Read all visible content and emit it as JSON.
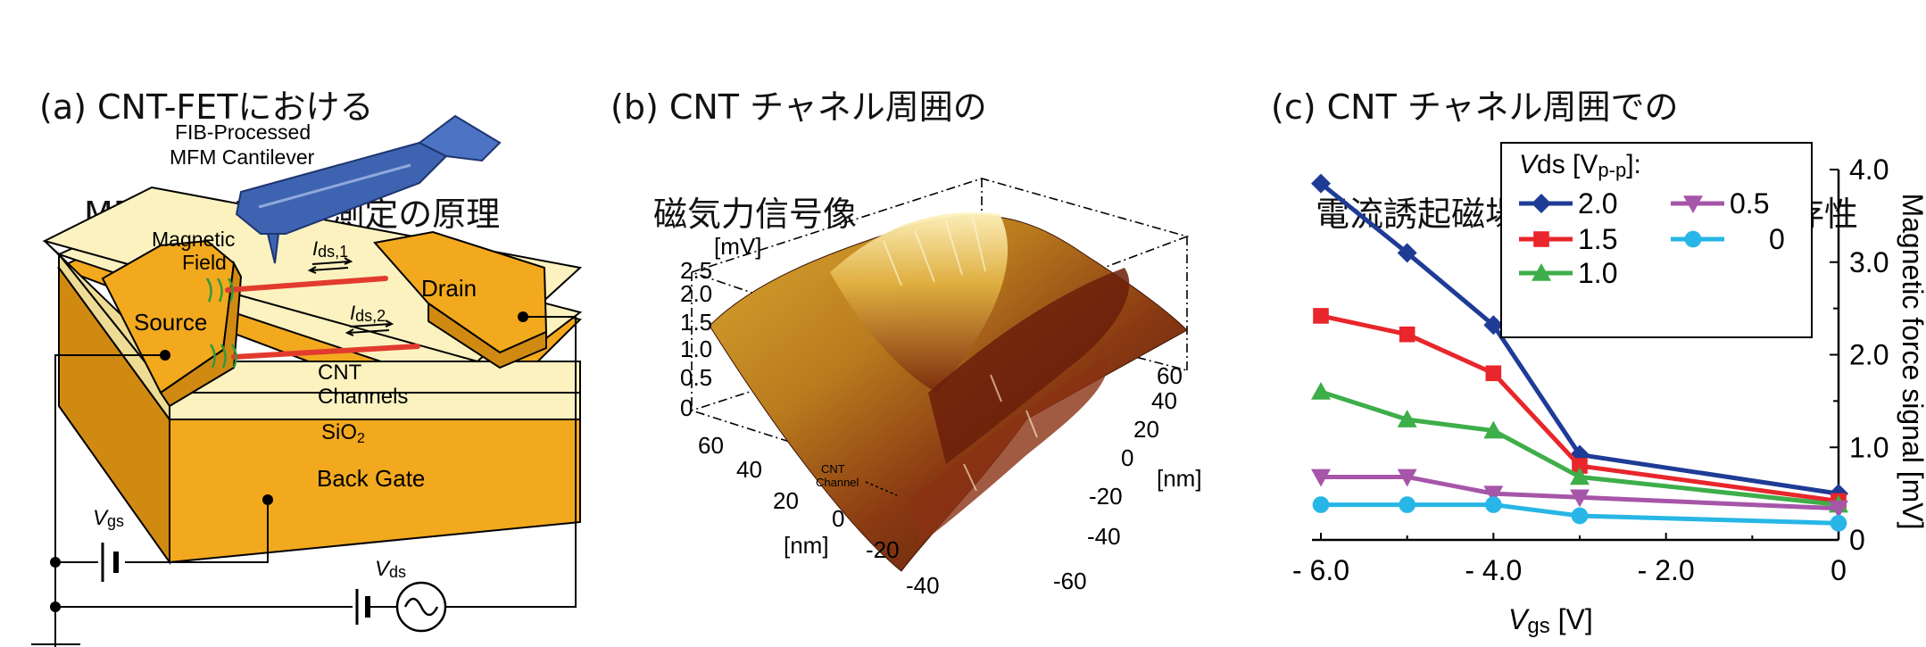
{
  "panel_a": {
    "title_line1": "(a) CNT-FETにおける",
    "title_line2": "MFMによる電流測定の原理",
    "cantilever_label_1": "FIB-Processed",
    "cantilever_label_2": "MFM Cantilever",
    "magnetic_label_1": "Magnetic",
    "magnetic_label_2": "Field",
    "ids1_main": "I",
    "ids1_sub": "ds,1",
    "ids2_main": "I",
    "ids2_sub": "ds,2",
    "source_label": "Source",
    "drain_label": "Drain",
    "cnt_label_1": "CNT",
    "cnt_label_2": "Channels",
    "sio2_label": "SiO",
    "sio2_sub": "2",
    "backgate_label": "Back Gate",
    "vgs_main": "V",
    "vgs_sub": "gs",
    "vds_main": "V",
    "vds_sub": "ds",
    "colors": {
      "gold": "#F2A91E",
      "gold_dark": "#D08A12",
      "cream": "#FBF2C0",
      "cream_side": "#EEDC95",
      "channel": "#E23B2E",
      "tip": "#3E63B0",
      "field": "#2F9A3C"
    }
  },
  "panel_b": {
    "title_line1": "(b) CNT チャネル周囲の",
    "title_line2": "磁気力信号像",
    "z_unit": "[mV]",
    "z_ticks": [
      "2.5",
      "2.0",
      "1.5",
      "1.0",
      "0.5",
      "0"
    ],
    "x_ticks": [
      "60",
      "40",
      "20",
      "0",
      "-20",
      "-40"
    ],
    "x_unit": "[nm]",
    "y_ticks": [
      "60",
      "40",
      "20",
      "0",
      "-20",
      "-40",
      "-60"
    ],
    "y_unit": "[nm]",
    "cnt_label_1": "CNT",
    "cnt_label_2": "Channel"
  },
  "panel_c": {
    "title_line1": "(c) CNT チャネル周囲での",
    "title_line2": "電流誘起磁場信号のバイアス依存性",
    "legend_title_main": "V",
    "legend_title_rest": "ds [V",
    "legend_title_sub": "p-p",
    "legend_title_end": "]:",
    "x_label_main": "V",
    "x_label_sub": "gs",
    "x_label_rest": " [V]",
    "y_label": "Magnetic force signal [mV]",
    "x_tick_labels": [
      "- 6.0",
      "- 4.0",
      "- 2.0",
      "0"
    ],
    "y_tick_labels": [
      "0",
      "1.0",
      "2.0",
      "3.0",
      "4.0"
    ]
  },
  "chart_data": {
    "type": "line",
    "xlabel": "Vgs [V]",
    "ylabel": "Magnetic force signal [mV]",
    "legend_title": "Vds [Vp-p]:",
    "legend_position": "top-right",
    "xlim": [
      -6.0,
      0
    ],
    "ylim": [
      0,
      4.0
    ],
    "x": [
      -6.0,
      -5.0,
      -4.0,
      -3.0,
      0
    ],
    "grid": false,
    "series": [
      {
        "name": "2.0",
        "values": [
          3.85,
          3.1,
          2.32,
          0.92,
          0.5
        ],
        "color": "#1E3C96",
        "marker": "diamond"
      },
      {
        "name": "1.5",
        "values": [
          2.42,
          2.22,
          1.8,
          0.8,
          0.42
        ],
        "color": "#E8262B",
        "marker": "square"
      },
      {
        "name": "1.0",
        "values": [
          1.6,
          1.3,
          1.18,
          0.68,
          0.38
        ],
        "color": "#3DAE49",
        "marker": "triangle-up"
      },
      {
        "name": "0.5",
        "values": [
          0.68,
          0.68,
          0.5,
          0.46,
          0.34
        ],
        "color": "#A656A8",
        "marker": "triangle-down"
      },
      {
        "name": "0",
        "values": [
          0.38,
          0.38,
          0.38,
          0.26,
          0.18
        ],
        "color": "#27B6E6",
        "marker": "circle"
      }
    ]
  }
}
